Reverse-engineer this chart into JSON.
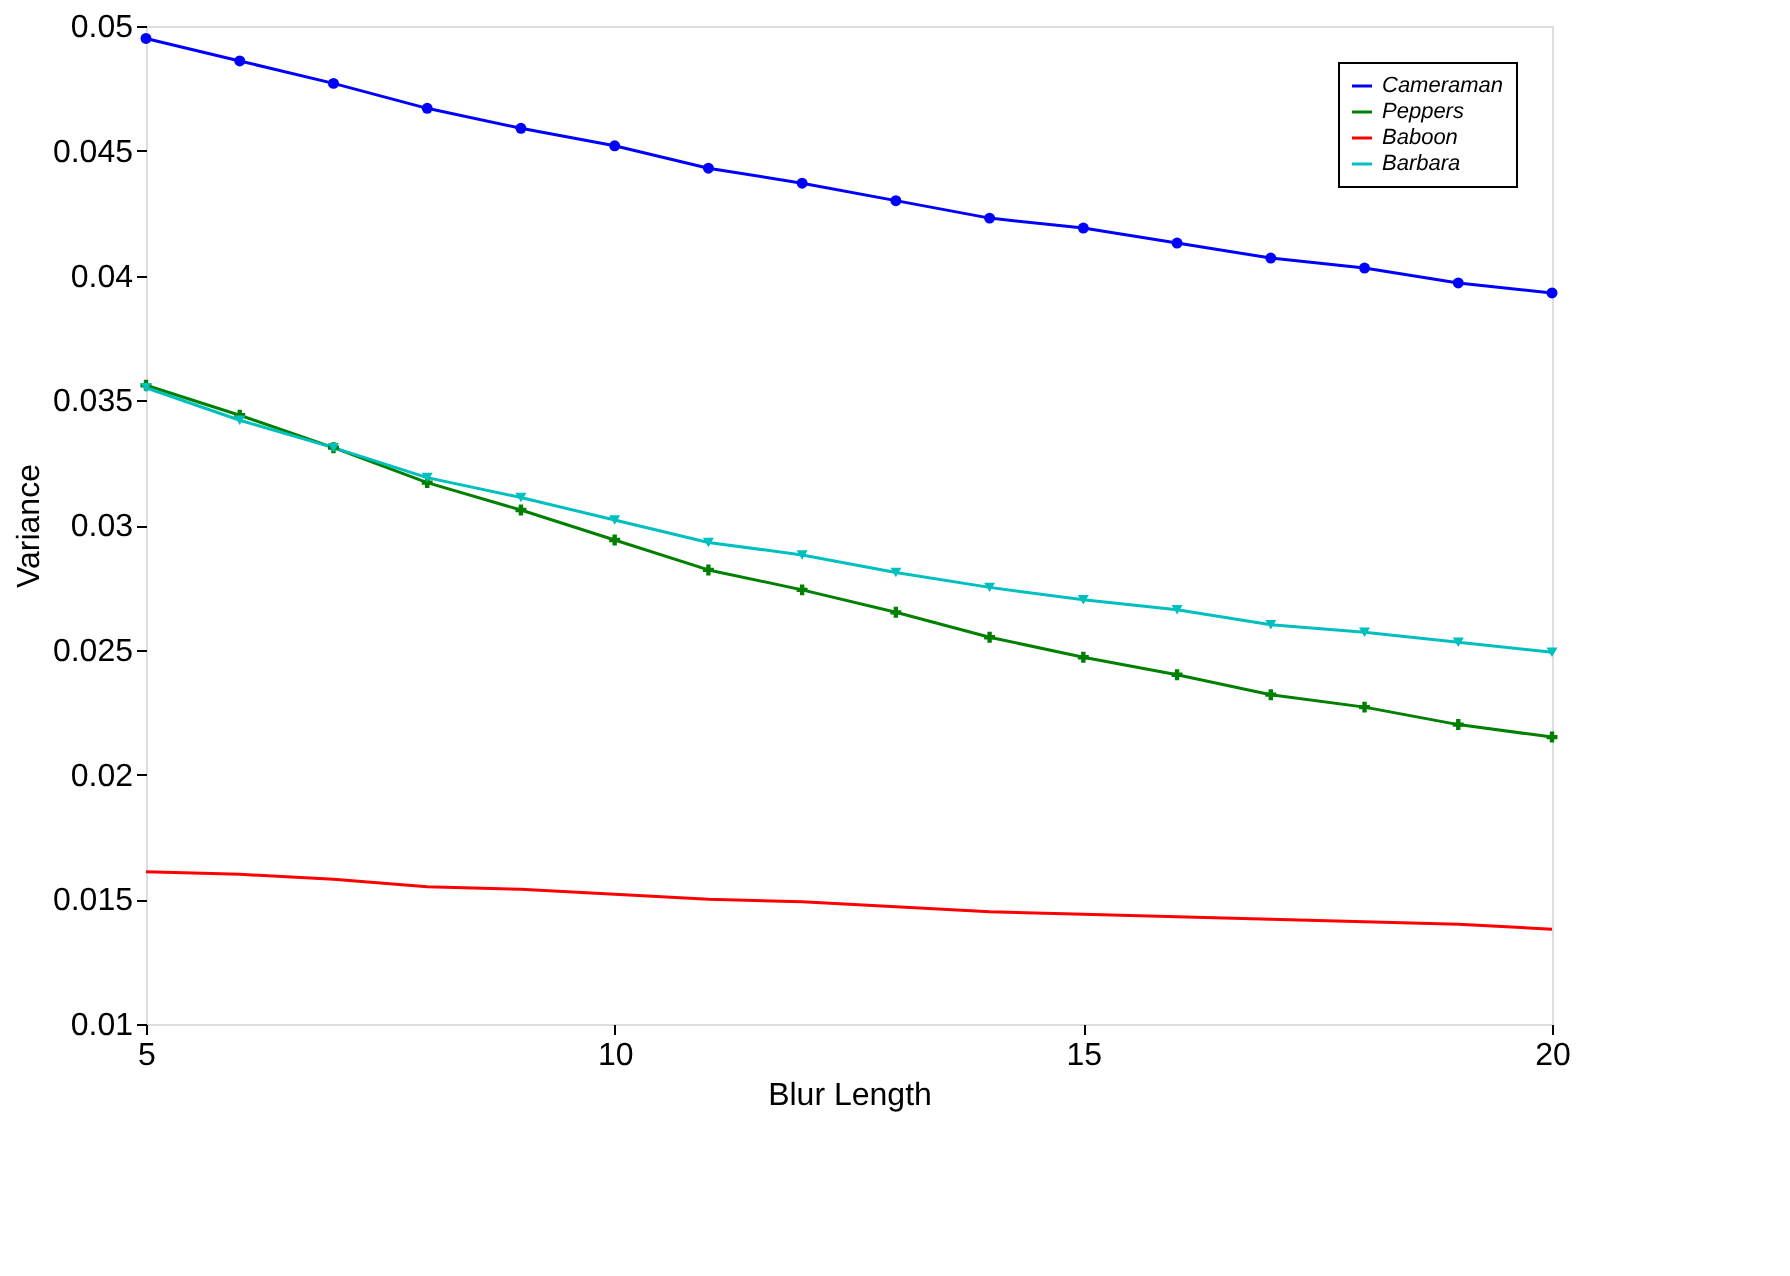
{
  "chart_data": {
    "type": "line",
    "xlabel": "Blur Length",
    "ylabel": "Variance",
    "x": [
      5,
      6,
      7,
      8,
      9,
      10,
      11,
      12,
      13,
      14,
      15,
      16,
      17,
      18,
      19,
      20
    ],
    "series": [
      {
        "name": "Cameraman",
        "color": "#0000ff",
        "marker": "circle",
        "values": [
          0.0495,
          0.0486,
          0.0477,
          0.0467,
          0.0459,
          0.0452,
          0.0443,
          0.0437,
          0.043,
          0.0423,
          0.0419,
          0.0413,
          0.0407,
          0.0403,
          0.0397,
          0.0393
        ]
      },
      {
        "name": "Peppers",
        "color": "#008000",
        "marker": "cross",
        "values": [
          0.0356,
          0.0344,
          0.0331,
          0.0317,
          0.0306,
          0.0294,
          0.0282,
          0.0274,
          0.0265,
          0.0255,
          0.0247,
          0.024,
          0.0232,
          0.0227,
          0.022,
          0.0215
        ]
      },
      {
        "name": "Baboon",
        "color": "#ff0000",
        "marker": "none",
        "values": [
          0.0161,
          0.016,
          0.0158,
          0.0155,
          0.0154,
          0.0152,
          0.015,
          0.0149,
          0.0147,
          0.0145,
          0.0144,
          0.0143,
          0.0142,
          0.0141,
          0.014,
          0.0138
        ]
      },
      {
        "name": "Barbara",
        "color": "#00bfbf",
        "marker": "triangle",
        "values": [
          0.0355,
          0.0342,
          0.0331,
          0.0319,
          0.0311,
          0.0302,
          0.0293,
          0.0288,
          0.0281,
          0.0275,
          0.027,
          0.0266,
          0.026,
          0.0257,
          0.0253,
          0.0249
        ]
      }
    ],
    "xlim": [
      5,
      20
    ],
    "xticks": [
      5,
      10,
      15,
      20
    ],
    "ylim": [
      0.01,
      0.05
    ],
    "yticks": [
      0.01,
      0.015,
      0.02,
      0.025,
      0.03,
      0.035,
      0.04,
      0.045,
      0.05
    ],
    "grid": false,
    "legend": "top right"
  }
}
